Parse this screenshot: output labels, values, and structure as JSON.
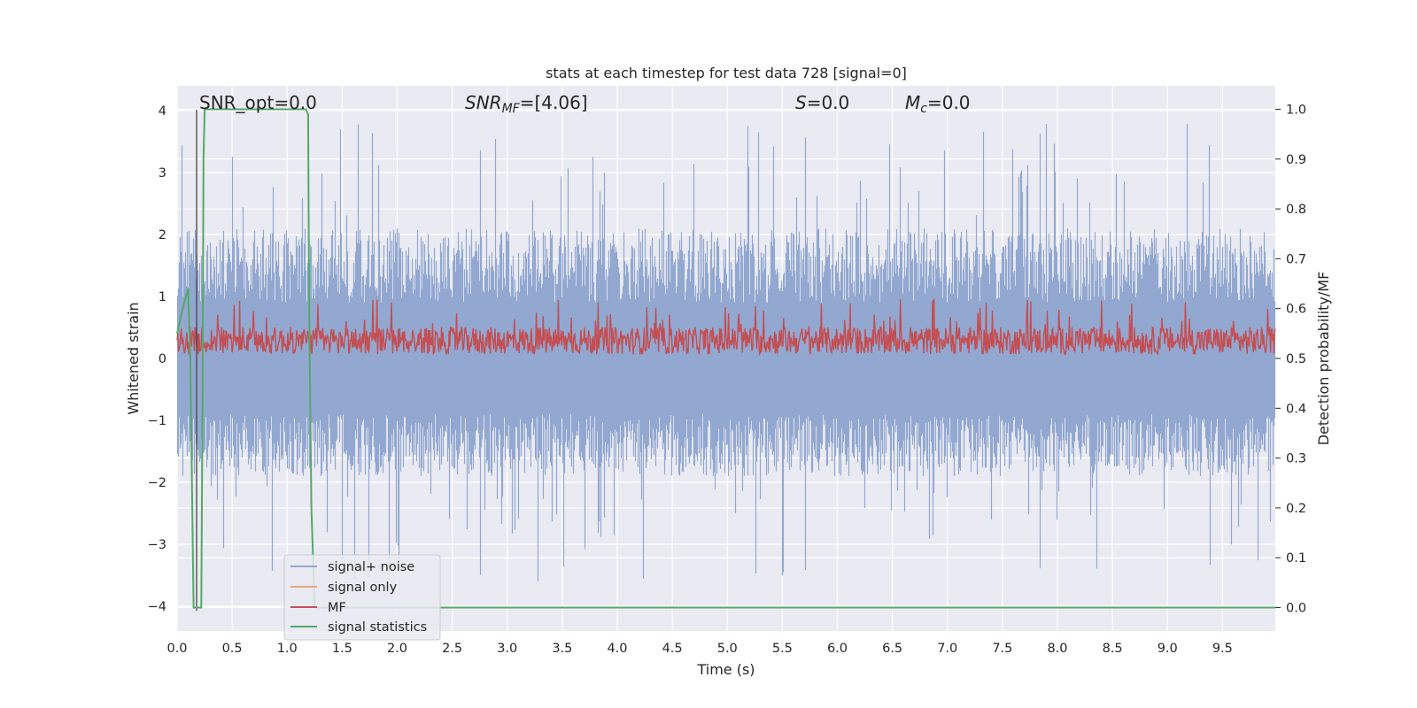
{
  "chart_data": {
    "type": "line",
    "title": "stats at each timestep for test data 728 [signal=0]",
    "xlabel": "Time (s)",
    "ylabel_left": "Whitened strain",
    "ylabel_right": "Detection probability/MF",
    "xlim": [
      0.0,
      9.98
    ],
    "ylim_left": [
      -4.4,
      4.4
    ],
    "ylim_right": [
      -0.047,
      1.047
    ],
    "x_ticks": [
      "0.0",
      "0.5",
      "1.0",
      "1.5",
      "2.0",
      "2.5",
      "3.0",
      "3.5",
      "4.0",
      "4.5",
      "5.0",
      "5.5",
      "6.0",
      "6.5",
      "7.0",
      "7.5",
      "8.0",
      "8.5",
      "9.0",
      "9.5"
    ],
    "y_ticks_left": [
      "4",
      "3",
      "2",
      "1",
      "0",
      "−1",
      "−2",
      "−3",
      "−4"
    ],
    "y_ticks_right": [
      "1.0",
      "0.9",
      "0.8",
      "0.7",
      "0.6",
      "0.5",
      "0.4",
      "0.3",
      "0.2",
      "0.1",
      "0.0"
    ],
    "grid": true,
    "legend_position": "lower-left",
    "annotations": {
      "snr_opt": "SNR_opt=0.0",
      "snr_mf_name": "SNR",
      "snr_mf_sub": "MF",
      "snr_mf_value": "=[4.06]",
      "s_name": "S",
      "s_value": "=0.0",
      "mc_name": "M",
      "mc_sub": "c",
      "mc_value": "=0.0"
    },
    "series": [
      {
        "name": "signal+ noise",
        "color": "#92a8d1",
        "axis": "left",
        "description_values": {
          "min": -3.95,
          "max": 4.0,
          "typical_envelope": [
            -2.3,
            2.4
          ]
        }
      },
      {
        "name": "signal only",
        "color": "#e8a383",
        "axis": "left",
        "values": "flat at 0 (no signal)"
      },
      {
        "name": "MF",
        "color": "#c44e52",
        "axis": "right",
        "typical_range": [
          0.5,
          0.6
        ]
      },
      {
        "name": "signal statistics",
        "color": "#55a868",
        "axis": "right",
        "x": [
          0.0,
          0.05,
          0.1,
          0.12,
          0.15,
          0.17,
          0.2,
          0.22,
          0.23,
          0.24,
          0.25,
          0.3,
          1.17,
          1.19,
          1.2,
          1.22,
          1.25,
          9.98
        ],
        "y": [
          0.55,
          0.6,
          0.64,
          0.5,
          0.0,
          0.0,
          0.0,
          0.0,
          0.4,
          0.9,
          1.0,
          1.0,
          1.0,
          0.99,
          0.6,
          0.2,
          0.0,
          0.0
        ]
      }
    ],
    "vertical_marker": {
      "x": 0.18,
      "color": "#444444"
    }
  }
}
